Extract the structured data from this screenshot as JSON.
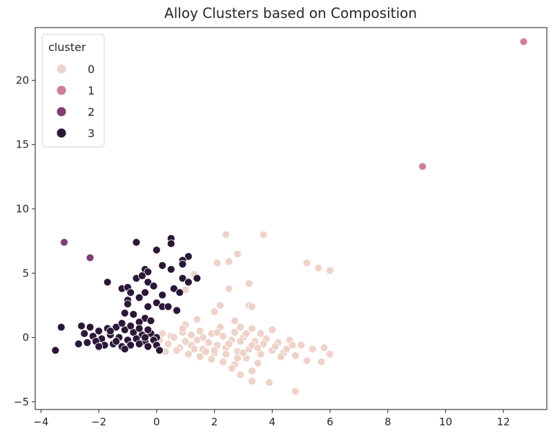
{
  "chart_data": {
    "type": "scatter",
    "title": "Alloy Clusters based on Composition",
    "xlabel": "",
    "ylabel": "",
    "xlim": [
      -4.2,
      13.5
    ],
    "ylim": [
      -5.6,
      24.1
    ],
    "x_ticks": [
      -4,
      -2,
      0,
      2,
      4,
      6,
      8,
      10,
      12
    ],
    "y_ticks": [
      -5,
      0,
      5,
      10,
      15,
      20
    ],
    "grid": false,
    "legend": {
      "title": "cluster",
      "placement": "top-left",
      "entries": [
        "0",
        "1",
        "2",
        "3"
      ]
    },
    "colors": {
      "0": "#efd3ca",
      "1": "#cf7f98",
      "2": "#7e3f74",
      "3": "#2b1738"
    },
    "series": [
      {
        "name": "0",
        "points": [
          [
            2.4,
            8.0
          ],
          [
            3.7,
            8.0
          ],
          [
            2.8,
            6.5
          ],
          [
            2.1,
            5.8
          ],
          [
            2.5,
            5.9
          ],
          [
            5.2,
            5.8
          ],
          [
            5.6,
            5.4
          ],
          [
            6.0,
            5.2
          ],
          [
            1.3,
            4.9
          ],
          [
            3.2,
            4.2
          ],
          [
            2.5,
            3.8
          ],
          [
            1.0,
            3.7
          ],
          [
            3.2,
            2.5
          ],
          [
            3.3,
            2.4
          ],
          [
            2.2,
            2.5
          ],
          [
            2.0,
            2.0
          ],
          [
            1.4,
            1.4
          ],
          [
            2.7,
            1.3
          ],
          [
            1.0,
            1.0
          ],
          [
            2.2,
            0.8
          ],
          [
            2.9,
            0.8
          ],
          [
            4.0,
            0.6
          ],
          [
            3.3,
            0.7
          ],
          [
            3.6,
            0.3
          ],
          [
            0.2,
            0.3
          ],
          [
            0.5,
            0.1
          ],
          [
            0.9,
            0.4
          ],
          [
            1.2,
            0.2
          ],
          [
            1.6,
            0.0
          ],
          [
            1.9,
            0.3
          ],
          [
            2.3,
            0.1
          ],
          [
            2.6,
            -0.2
          ],
          [
            3.0,
            0.0
          ],
          [
            3.4,
            -0.3
          ],
          [
            3.8,
            -0.1
          ],
          [
            4.2,
            -0.4
          ],
          [
            4.6,
            -0.2
          ],
          [
            5.0,
            -0.6
          ],
          [
            5.4,
            -0.9
          ],
          [
            5.8,
            -0.8
          ],
          [
            6.0,
            -1.3
          ],
          [
            5.7,
            -1.9
          ],
          [
            5.2,
            -1.8
          ],
          [
            4.8,
            -1.4
          ],
          [
            4.4,
            -1.2
          ],
          [
            4.0,
            -1.0
          ],
          [
            3.6,
            -1.3
          ],
          [
            3.2,
            -0.9
          ],
          [
            2.8,
            -1.1
          ],
          [
            2.4,
            -0.8
          ],
          [
            2.0,
            -1.2
          ],
          [
            1.6,
            -0.9
          ],
          [
            1.2,
            -0.6
          ],
          [
            0.8,
            -0.8
          ],
          [
            0.4,
            -0.5
          ],
          [
            0.1,
            -0.2
          ],
          [
            0.3,
            -1.1
          ],
          [
            0.7,
            -1.0
          ],
          [
            1.1,
            -1.3
          ],
          [
            1.5,
            -1.5
          ],
          [
            1.9,
            -1.7
          ],
          [
            2.3,
            -1.9
          ],
          [
            2.7,
            -2.1
          ],
          [
            3.1,
            -1.6
          ],
          [
            3.5,
            -2.0
          ],
          [
            3.3,
            -2.6
          ],
          [
            2.9,
            -2.9
          ],
          [
            2.6,
            -2.4
          ],
          [
            3.3,
            -3.4
          ],
          [
            3.9,
            -3.5
          ],
          [
            4.8,
            -4.2
          ],
          [
            1.8,
            -0.4
          ],
          [
            2.1,
            -0.6
          ],
          [
            2.5,
            -0.5
          ],
          [
            2.9,
            -0.3
          ],
          [
            3.3,
            -0.6
          ],
          [
            3.7,
            -0.5
          ],
          [
            4.1,
            -0.7
          ],
          [
            4.5,
            -0.9
          ],
          [
            1.4,
            -0.2
          ],
          [
            1.0,
            -0.3
          ],
          [
            0.6,
            0.0
          ],
          [
            2.0,
            -1.0
          ],
          [
            2.4,
            -1.3
          ],
          [
            2.8,
            -1.6
          ],
          [
            3.0,
            -1.2
          ],
          [
            1.7,
            -1.1
          ],
          [
            1.3,
            -0.9
          ],
          [
            0.9,
            0.7
          ],
          [
            1.5,
            0.5
          ],
          [
            2.1,
            0.4
          ],
          [
            2.7,
            0.4
          ],
          [
            3.1,
            0.3
          ],
          [
            3.5,
            -0.8
          ],
          [
            4.3,
            -1.5
          ],
          [
            4.7,
            -0.6
          ]
        ]
      },
      {
        "name": "1",
        "points": [
          [
            12.7,
            23.0
          ],
          [
            9.2,
            13.3
          ]
        ]
      },
      {
        "name": "2",
        "points": [
          [
            -3.2,
            7.4
          ],
          [
            -2.3,
            6.2
          ]
        ]
      },
      {
        "name": "3",
        "points": [
          [
            0.5,
            7.7
          ],
          [
            0.5,
            7.3
          ],
          [
            -0.7,
            7.4
          ],
          [
            0.0,
            6.8
          ],
          [
            1.1,
            6.3
          ],
          [
            0.9,
            6.0
          ],
          [
            0.5,
            5.3
          ],
          [
            0.2,
            5.6
          ],
          [
            0.9,
            5.7
          ],
          [
            -0.4,
            5.3
          ],
          [
            -0.3,
            5.1
          ],
          [
            1.4,
            4.6
          ],
          [
            0.9,
            4.6
          ],
          [
            1.1,
            4.3
          ],
          [
            -0.7,
            4.6
          ],
          [
            -0.5,
            4.8
          ],
          [
            -1.7,
            4.3
          ],
          [
            -0.3,
            4.3
          ],
          [
            -0.1,
            4.0
          ],
          [
            0.6,
            3.8
          ],
          [
            0.8,
            3.5
          ],
          [
            -1.2,
            3.8
          ],
          [
            -1.0,
            3.9
          ],
          [
            -0.9,
            3.5
          ],
          [
            -0.4,
            3.5
          ],
          [
            0.2,
            3.3
          ],
          [
            -0.6,
            3.1
          ],
          [
            -1.0,
            2.9
          ],
          [
            -1.0,
            2.6
          ],
          [
            -0.3,
            2.4
          ],
          [
            0.0,
            2.7
          ],
          [
            0.2,
            2.4
          ],
          [
            0.4,
            2.4
          ],
          [
            0.7,
            2.1
          ],
          [
            -1.1,
            1.9
          ],
          [
            -0.4,
            1.5
          ],
          [
            -0.8,
            1.8
          ],
          [
            -0.6,
            1.2
          ],
          [
            -0.2,
            1.3
          ],
          [
            -3.3,
            0.8
          ],
          [
            -2.6,
            0.9
          ],
          [
            -2.3,
            0.8
          ],
          [
            -2.0,
            0.5
          ],
          [
            -1.7,
            0.7
          ],
          [
            -1.4,
            0.8
          ],
          [
            -1.1,
            0.6
          ],
          [
            -0.8,
            0.4
          ],
          [
            -0.5,
            0.2
          ],
          [
            -0.2,
            0.3
          ],
          [
            0.0,
            0.0
          ],
          [
            -2.5,
            0.3
          ],
          [
            -2.2,
            0.1
          ],
          [
            -1.9,
            -0.1
          ],
          [
            -1.6,
            0.2
          ],
          [
            -1.3,
            0.0
          ],
          [
            -1.0,
            -0.2
          ],
          [
            -0.7,
            -0.1
          ],
          [
            -0.4,
            -0.3
          ],
          [
            -0.1,
            -0.2
          ],
          [
            -2.7,
            -0.5
          ],
          [
            -2.4,
            -0.4
          ],
          [
            -2.1,
            -0.3
          ],
          [
            -1.8,
            -0.6
          ],
          [
            -1.5,
            -0.5
          ],
          [
            -1.2,
            -0.7
          ],
          [
            -0.9,
            -0.6
          ],
          [
            -0.6,
            -0.5
          ],
          [
            -0.3,
            -0.7
          ],
          [
            0.0,
            -0.6
          ],
          [
            -3.5,
            -1.0
          ],
          [
            0.1,
            -1.0
          ],
          [
            -1.4,
            -0.3
          ],
          [
            -1.6,
            0.5
          ],
          [
            -0.9,
            0.9
          ],
          [
            -0.6,
            0.7
          ],
          [
            -0.3,
            0.6
          ],
          [
            -1.2,
            1.1
          ],
          [
            -2.0,
            -0.7
          ],
          [
            -1.1,
            -0.9
          ],
          [
            -0.4,
            0.0
          ]
        ]
      }
    ]
  }
}
